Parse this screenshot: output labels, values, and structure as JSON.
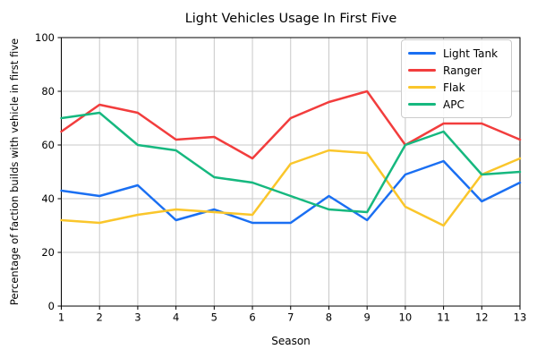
{
  "chart_data": {
    "type": "line",
    "title": "Light Vehicles Usage In First Five",
    "xlabel": "Season",
    "ylabel": "Percentage of faction builds with vehicle in first five",
    "x": [
      1,
      2,
      3,
      4,
      5,
      6,
      7,
      8,
      9,
      10,
      11,
      12,
      13
    ],
    "xticks": [
      1,
      2,
      3,
      4,
      5,
      6,
      7,
      8,
      9,
      10,
      11,
      12,
      13
    ],
    "yticks": [
      0,
      20,
      40,
      60,
      80,
      100
    ],
    "xlim": [
      1,
      13
    ],
    "ylim": [
      0,
      100
    ],
    "grid": true,
    "legend_position": "upper right",
    "series": [
      {
        "name": "Light Tank",
        "color": "#1a6ff2",
        "values": [
          43,
          41,
          45,
          32,
          36,
          31,
          31,
          41,
          32,
          49,
          54,
          39,
          46
        ]
      },
      {
        "name": "Ranger",
        "color": "#f23d3d",
        "values": [
          65,
          75,
          72,
          62,
          63,
          55,
          70,
          76,
          80,
          60,
          68,
          68,
          62
        ]
      },
      {
        "name": "Flak",
        "color": "#fac62b",
        "values": [
          32,
          31,
          34,
          36,
          35,
          34,
          53,
          58,
          57,
          37,
          30,
          49,
          55
        ]
      },
      {
        "name": "APC",
        "color": "#16b87f",
        "values": [
          70,
          72,
          60,
          58,
          48,
          46,
          41,
          36,
          35,
          60,
          65,
          49,
          50
        ]
      }
    ],
    "colors": {
      "background": "#ffffff",
      "grid": "#c8c8c8",
      "axis": "#000000",
      "text": "#000000",
      "legend_border": "#cccccc"
    }
  }
}
